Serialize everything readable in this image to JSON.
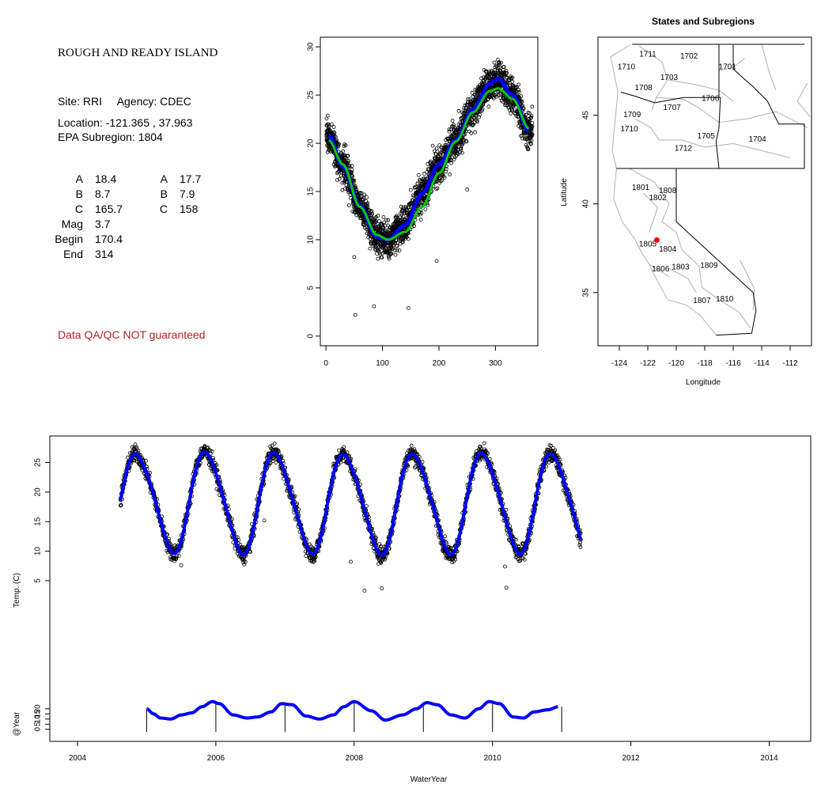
{
  "info": {
    "title": "ROUGH AND READY ISLAND",
    "site_line": "Site: RRI     Agency: CDEC",
    "location_line": "Location: -121.365 , 37.963",
    "subregion_line": "EPA Subregion: 1804",
    "stats_left": [
      {
        "label": "A",
        "value": "18.4"
      },
      {
        "label": "B",
        "value": "8.7"
      },
      {
        "label": "C",
        "value": "165.7"
      },
      {
        "label": "Mag",
        "value": "3.7"
      },
      {
        "label": "Begin",
        "value": "170.4"
      },
      {
        "label": "End",
        "value": "314"
      }
    ],
    "stats_right": [
      {
        "label": "A",
        "value": "17.7"
      },
      {
        "label": "B",
        "value": "7.9"
      },
      {
        "label": "C",
        "value": "158"
      }
    ],
    "qa_note": "Data QA/QC NOT guaranteed",
    "qa_color": "#b22222"
  },
  "chart_data": [
    {
      "id": "doy",
      "type": "scatter",
      "title": "",
      "xlabel": "",
      "ylabel": "",
      "xlim": [
        -10,
        375
      ],
      "ylim": [
        -1,
        31
      ],
      "xticks": [
        0,
        100,
        200,
        300
      ],
      "yticks": [
        0,
        5,
        10,
        15,
        20,
        25,
        30
      ],
      "points_color": "#000000",
      "series": [
        {
          "color": "#0000ff",
          "x": [
            5,
            30,
            60,
            90,
            110,
            140,
            170,
            200,
            230,
            260,
            290,
            305,
            330,
            360
          ],
          "y": [
            20.8,
            17.6,
            13.5,
            10.3,
            10.0,
            11.5,
            14.8,
            17.8,
            20.3,
            23.5,
            26.2,
            26.7,
            25.0,
            21.2
          ]
        },
        {
          "color": "#00cc00",
          "x": [
            5,
            30,
            60,
            90,
            110,
            140,
            170,
            200,
            230,
            260,
            290,
            305,
            330,
            360
          ],
          "y": [
            20.3,
            17.8,
            13.4,
            10.5,
            10.0,
            10.8,
            13.4,
            16.9,
            20.2,
            23.2,
            25.4,
            25.7,
            24.6,
            21.5
          ]
        }
      ],
      "outliers": [
        {
          "x": 52,
          "y": 2.2
        },
        {
          "x": 85,
          "y": 3.1
        },
        {
          "x": 146,
          "y": 2.9
        },
        {
          "x": 196,
          "y": 7.8
        },
        {
          "x": 50,
          "y": 8.2
        },
        {
          "x": 250,
          "y": 15.2
        },
        {
          "x": 285,
          "y": 26.5
        }
      ]
    },
    {
      "id": "map",
      "type": "map",
      "title": "States and Subregions",
      "xlabel": "Longitude",
      "ylabel": "Latitude",
      "xlim": [
        -125.5,
        -110.5
      ],
      "ylim": [
        32,
        49.4
      ],
      "xticks": [
        -124,
        -122,
        -120,
        -118,
        -116,
        -114,
        -112
      ],
      "yticks": [
        35,
        40,
        45
      ],
      "site": {
        "lon": -121.365,
        "lat": 37.963,
        "color": "#ff0000"
      },
      "region_labels": [
        {
          "text": "1711",
          "lon": -122.0,
          "lat": 48.3
        },
        {
          "text": "1702",
          "lon": -119.1,
          "lat": 48.2
        },
        {
          "text": "1701",
          "lon": -116.4,
          "lat": 47.6
        },
        {
          "text": "1710",
          "lon": -123.5,
          "lat": 47.6
        },
        {
          "text": "1703",
          "lon": -120.5,
          "lat": 47.0
        },
        {
          "text": "1708",
          "lon": -122.3,
          "lat": 46.4
        },
        {
          "text": "1706",
          "lon": -117.6,
          "lat": 45.8
        },
        {
          "text": "1707",
          "lon": -120.3,
          "lat": 45.3
        },
        {
          "text": "1709",
          "lon": -123.1,
          "lat": 44.9
        },
        {
          "text": "1710",
          "lon": -123.3,
          "lat": 44.1
        },
        {
          "text": "1705",
          "lon": -117.9,
          "lat": 43.7
        },
        {
          "text": "1704",
          "lon": -114.3,
          "lat": 43.5
        },
        {
          "text": "1712",
          "lon": -119.5,
          "lat": 43.0
        },
        {
          "text": "1801",
          "lon": -122.5,
          "lat": 40.8
        },
        {
          "text": "1808",
          "lon": -120.6,
          "lat": 40.6
        },
        {
          "text": "1802",
          "lon": -121.3,
          "lat": 40.2
        },
        {
          "text": "1805",
          "lon": -122.0,
          "lat": 37.6
        },
        {
          "text": "1804",
          "lon": -120.6,
          "lat": 37.3
        },
        {
          "text": "1806",
          "lon": -121.1,
          "lat": 36.2
        },
        {
          "text": "1803",
          "lon": -119.7,
          "lat": 36.3
        },
        {
          "text": "1809",
          "lon": -117.7,
          "lat": 36.4
        },
        {
          "text": "1807",
          "lon": -118.2,
          "lat": 34.4
        },
        {
          "text": "1810",
          "lon": -116.6,
          "lat": 34.5
        }
      ]
    },
    {
      "id": "timeseries",
      "type": "scatter",
      "title": "",
      "xlabel": "WaterYear",
      "ylabel": "Temp. (C)",
      "ylabel_lower": "@Year",
      "xlim": [
        2003.6,
        2014.6
      ],
      "xticks": [
        2004,
        2006,
        2008,
        2010,
        2012,
        2014
      ],
      "ylim": [
        -22.2,
        29.5
      ],
      "yticks": [
        5,
        10,
        15,
        20,
        25
      ],
      "year_markers": [
        2005,
        2006,
        2007,
        2008,
        2009,
        2010,
        2011
      ],
      "lower_yticks": [
        0,
        5,
        10,
        15,
        20
      ],
      "lower_ylim": [
        -2.5,
        43
      ],
      "fit_color": "#0000ff",
      "series_start": 2004.62,
      "series_end": 2011.28,
      "peak_values": [
        26.5,
        26.8,
        26.7,
        26.4,
        26.5,
        26.6,
        26.5
      ],
      "trough_values": [
        9.8,
        10.0,
        9.8,
        9.9,
        9.7,
        9.8,
        9.9
      ],
      "outliers": [
        {
          "x": 2008.15,
          "y": 3.3
        },
        {
          "x": 2008.4,
          "y": 3.7
        },
        {
          "x": 2010.2,
          "y": 3.8
        },
        {
          "x": 2005.5,
          "y": 7.6
        },
        {
          "x": 2006.7,
          "y": 15.2
        },
        {
          "x": 2010.18,
          "y": 7.4
        },
        {
          "x": 2007.95,
          "y": 8.2
        }
      ],
      "lower_series": {
        "color": "#0000ff",
        "x": [
          2005.0,
          2005.1,
          2005.2,
          2005.35,
          2005.5,
          2005.65,
          2005.8,
          2005.95,
          2006.05,
          2006.25,
          2006.45,
          2006.6,
          2006.8,
          2006.95,
          2007.1,
          2007.3,
          2007.5,
          2007.7,
          2007.85,
          2008.0,
          2008.25,
          2008.45,
          2008.7,
          2008.9,
          2009.05,
          2009.2,
          2009.4,
          2009.6,
          2009.8,
          2009.95,
          2010.1,
          2010.3,
          2010.45,
          2010.6,
          2010.8,
          2010.95
        ],
        "y": [
          20,
          15,
          11,
          10,
          14,
          16,
          22,
          27,
          25,
          14,
          11,
          12,
          17,
          25,
          24,
          13,
          10,
          14,
          22,
          27,
          18,
          9,
          14,
          20,
          26,
          24,
          14,
          11,
          20,
          27,
          25,
          12,
          11,
          17,
          19,
          22
        ]
      }
    }
  ]
}
